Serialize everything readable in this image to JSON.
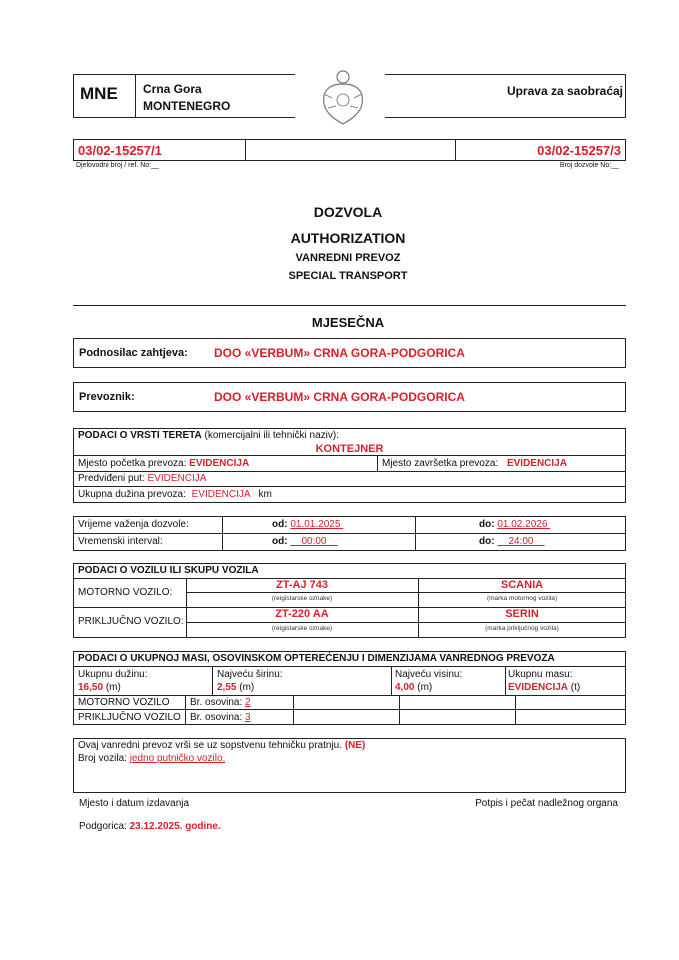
{
  "header": {
    "country_code": "MNE",
    "country_local": "Crna Gora",
    "country_en": "MONTENEGRO",
    "authority": "Uprava za saobraćaj"
  },
  "refs": {
    "ref_no": "03/02-15257/1",
    "ref_caption": "Djelovodni broj / ref. No:__",
    "permit_no": "03/02-15257/3",
    "permit_caption": "Broj dozvole No:__"
  },
  "title": {
    "line1": "DOZVOLA",
    "line2": "AUTHORIZATION",
    "line3": "VANREDNI PREVOZ",
    "line4": "SPECIAL TRANSPORT",
    "type": "MJESEČNA"
  },
  "applicant": {
    "label": "Podnosilac zahtjeva:",
    "value": "DOO «VERBUM» CRNA GORA-PODGORICA"
  },
  "carrier": {
    "label": "Prevoznik:",
    "value": "DOO «VERBUM» CRNA GORA-PODGORICA"
  },
  "cargo": {
    "heading": "PODACI O VRSTI TERETA",
    "heading_note": "(komercijalni ili tehnički naziv):",
    "name": "KONTEJNER",
    "start_label": "Mjesto početka prevoza:",
    "start": "EVIDENCIJA",
    "end_label": "Mjesto završetka prevoza:",
    "end": "EVIDENCIJA",
    "route_label": "Predviđeni put:",
    "route": "EVIDENCIJA",
    "length_label": "Ukupna dužina prevoza:",
    "length": "EVIDENCIJA",
    "length_unit": "km"
  },
  "validity": {
    "period_label": "Vrijeme važenja dozvole:",
    "from_label": "od:",
    "from_date": "01.01.2025",
    "to_label": "do:",
    "to_date": "01.02.2026",
    "interval_label": "Vremenski interval:",
    "from_time": "00:00",
    "to_time": "24:00"
  },
  "vehicles": {
    "heading": "PODACI O VOZILU ILI SKUPU  VOZILA",
    "motor_label": "MOTORNO VOZILO:",
    "motor_plate": "ZT-AJ 743",
    "plate_caption": "(reigistarske oznake)",
    "motor_make": "SCANIA",
    "motor_make_caption": "(marka motornog vozila)",
    "trailer_label": "PRIKLJUČNO VOZILO:",
    "trailer_plate": "ZT-220 AA",
    "trailer_make": "SERIN",
    "trailer_make_caption": "(marka priključnog vozila)"
  },
  "dimensions": {
    "heading": "PODACI O UKUPNOJ MASI, OSOVINSKOM  OPTEREĆENJU I  DIMENZIJAMA VANREDNOG PREVOZA",
    "length_label": "Ukupnu dužinu:",
    "length": "16,50",
    "width_label": "Najveću širinu:",
    "width": "2,55",
    "height_label": "Najveću visinu:",
    "height": "4,00",
    "unit_m": "(m)",
    "mass_label": "Ukupnu masu:",
    "mass": "EVIDENCIJA",
    "unit_t": "(t)",
    "motor_label": "MOTORNO VOZILO",
    "trailer_label": "PRIKLJUČNO VOZILO",
    "axles_label": "Br. osovina:",
    "motor_axles": "2",
    "trailer_axles": "3"
  },
  "escort": {
    "text": "Ovaj vanredni prevoz vrši se uz sopstvenu tehničku pratnju.",
    "value": "(NE)",
    "count_label": "Broj vozila:",
    "count": "jedno putničko vozilo."
  },
  "footer": {
    "place_date_label": "Mjesto i datum izdavanja",
    "signature_label": "Potpis i pečat nadležnog organa",
    "place": "Podgorica:",
    "date": "23.12.2025. godine."
  }
}
